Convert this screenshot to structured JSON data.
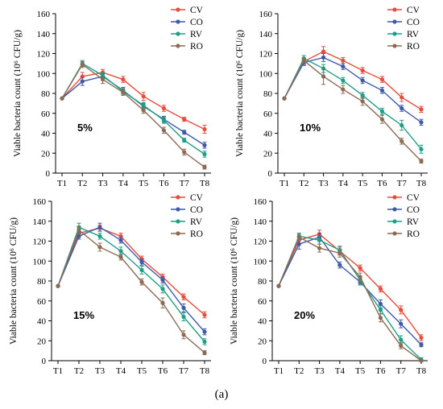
{
  "figure_label": "(a)",
  "ylabel": "Viable bacteria count (10⁶ CFU/g)",
  "colors": {
    "CV": "#e74c3c",
    "CO": "#3f5aa8",
    "RV": "#1f9e86",
    "RO": "#8c6b55"
  },
  "chart_data": [
    {
      "type": "line",
      "panel_label": "5%",
      "xlabel": "",
      "ylabel": "Viable bacteria count (10⁶ CFU/g)",
      "categories": [
        "T1",
        "T2",
        "T3",
        "T4",
        "T5",
        "T6",
        "T7",
        "T8"
      ],
      "ylim": [
        0,
        160
      ],
      "yticks": [
        0,
        20,
        40,
        60,
        80,
        100,
        120,
        140,
        160
      ],
      "legend_position": "top-right",
      "series": [
        {
          "name": "CV",
          "values": [
            75,
            97,
            101,
            94,
            77,
            65,
            54,
            44
          ],
          "errors": [
            0,
            4,
            3,
            3,
            4,
            3,
            2,
            4
          ]
        },
        {
          "name": "CO",
          "values": [
            75,
            92,
            97,
            83,
            67,
            54,
            41,
            28
          ],
          "errors": [
            0,
            4,
            3,
            3,
            3,
            3,
            2,
            3
          ]
        },
        {
          "name": "RV",
          "values": [
            75,
            110,
            98,
            82,
            68,
            53,
            33,
            19
          ],
          "errors": [
            0,
            3,
            3,
            3,
            3,
            3,
            2,
            3
          ]
        },
        {
          "name": "RO",
          "values": [
            75,
            109,
            94,
            81,
            63,
            43,
            21,
            6
          ],
          "errors": [
            0,
            3,
            4,
            3,
            3,
            3,
            3,
            2
          ]
        }
      ]
    },
    {
      "type": "line",
      "panel_label": "10%",
      "xlabel": "",
      "ylabel": "Viable bacteria count (10⁶ CFU/g)",
      "categories": [
        "T1",
        "T2",
        "T3",
        "T4",
        "T5",
        "T6",
        "T7",
        "T8"
      ],
      "ylim": [
        0,
        160
      ],
      "yticks": [
        0,
        20,
        40,
        60,
        80,
        100,
        120,
        140,
        160
      ],
      "legend_position": "top-right",
      "series": [
        {
          "name": "CV",
          "values": [
            75,
            112,
            122,
            113,
            103,
            94,
            76,
            64
          ],
          "errors": [
            0,
            3,
            5,
            3,
            3,
            3,
            4,
            3
          ]
        },
        {
          "name": "CO",
          "values": [
            75,
            111,
            116,
            107,
            93,
            83,
            65,
            51
          ],
          "errors": [
            0,
            3,
            4,
            3,
            3,
            3,
            3,
            3
          ]
        },
        {
          "name": "RV",
          "values": [
            75,
            115,
            105,
            93,
            78,
            62,
            48,
            24
          ],
          "errors": [
            0,
            3,
            4,
            3,
            3,
            3,
            5,
            4
          ]
        },
        {
          "name": "RO",
          "values": [
            75,
            113,
            97,
            84,
            72,
            54,
            32,
            12
          ],
          "errors": [
            0,
            3,
            8,
            4,
            4,
            4,
            3,
            2
          ]
        }
      ]
    },
    {
      "type": "line",
      "panel_label": "15%",
      "xlabel": "",
      "ylabel": "Viable bacteria count (10⁶ CFU/g)",
      "categories": [
        "T1",
        "T2",
        "T3",
        "T4",
        "T5",
        "T6",
        "T7",
        "T8"
      ],
      "ylim": [
        0,
        160
      ],
      "yticks": [
        0,
        20,
        40,
        60,
        80,
        100,
        120,
        140,
        160
      ],
      "legend_position": "top-right",
      "series": [
        {
          "name": "CV",
          "values": [
            75,
            128,
            133,
            125,
            102,
            84,
            64,
            46
          ],
          "errors": [
            0,
            4,
            3,
            3,
            3,
            3,
            3,
            3
          ]
        },
        {
          "name": "CO",
          "values": [
            75,
            125,
            134,
            121,
            99,
            81,
            53,
            29
          ],
          "errors": [
            0,
            3,
            4,
            3,
            3,
            3,
            4,
            3
          ]
        },
        {
          "name": "RV",
          "values": [
            75,
            134,
            125,
            110,
            91,
            72,
            44,
            19
          ],
          "errors": [
            0,
            4,
            3,
            4,
            4,
            4,
            4,
            3
          ]
        },
        {
          "name": "RO",
          "values": [
            75,
            131,
            114,
            104,
            79,
            58,
            26,
            8
          ],
          "errors": [
            0,
            4,
            4,
            3,
            3,
            5,
            4,
            2
          ]
        }
      ]
    },
    {
      "type": "line",
      "panel_label": "20%",
      "xlabel": "",
      "ylabel": "Viable bacteria count (10⁶ CFU/g)",
      "categories": [
        "T1",
        "T2",
        "T3",
        "T4",
        "T5",
        "T6",
        "T7",
        "T8"
      ],
      "ylim": [
        0,
        160
      ],
      "yticks": [
        0,
        20,
        40,
        60,
        80,
        100,
        120,
        140,
        160
      ],
      "legend_position": "top-right",
      "series": [
        {
          "name": "CV",
          "values": [
            75,
            121,
            127,
            110,
            93,
            72,
            51,
            23
          ],
          "errors": [
            0,
            4,
            4,
            4,
            3,
            3,
            4,
            3
          ]
        },
        {
          "name": "CO",
          "values": [
            75,
            117,
            124,
            96,
            79,
            57,
            37,
            16
          ],
          "errors": [
            0,
            5,
            4,
            3,
            3,
            4,
            4,
            2
          ]
        },
        {
          "name": "RV",
          "values": [
            75,
            125,
            121,
            111,
            81,
            51,
            21,
            1
          ],
          "errors": [
            0,
            3,
            4,
            4,
            4,
            4,
            4,
            2
          ]
        },
        {
          "name": "RO",
          "values": [
            75,
            124,
            113,
            108,
            84,
            43,
            15,
            0
          ],
          "errors": [
            0,
            3,
            4,
            4,
            4,
            4,
            3,
            1
          ]
        }
      ]
    }
  ]
}
